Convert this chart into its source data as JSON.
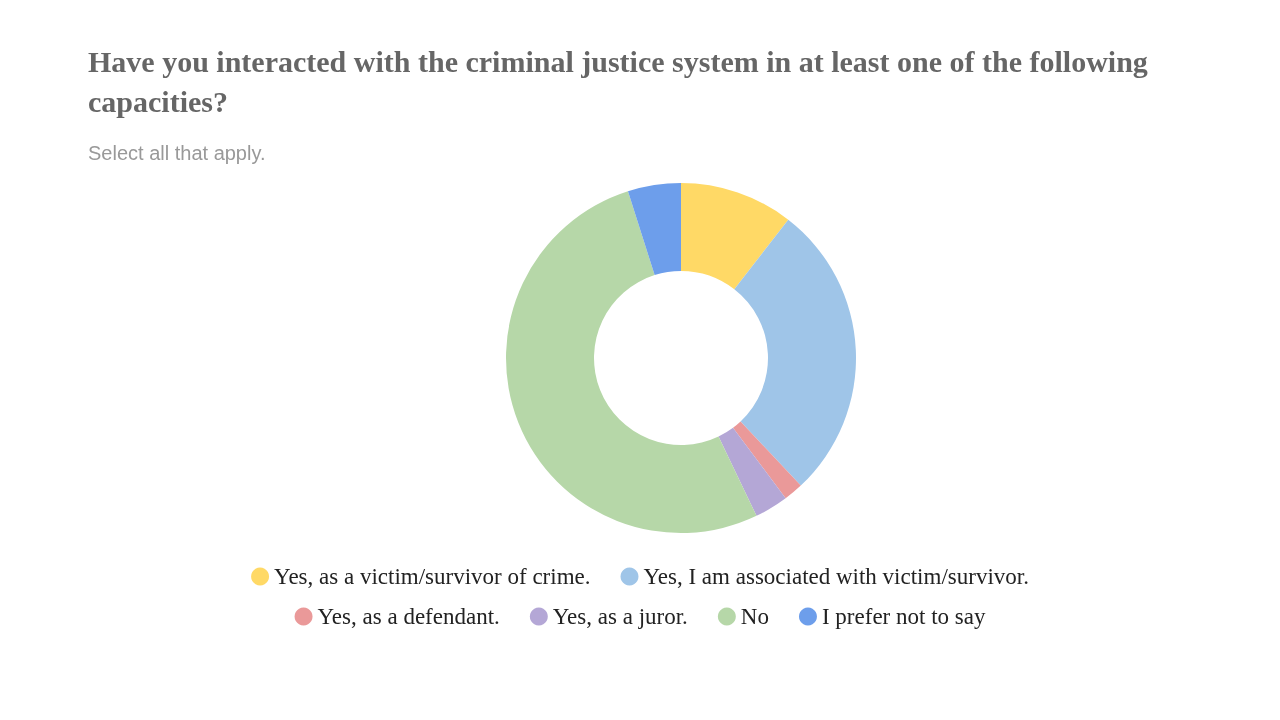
{
  "chart_data": {
    "type": "donut",
    "title": "Have you interacted with the criminal justice system in at least one of the following capacities?",
    "subtitle": "Select all that apply.",
    "categories": [
      "Yes, as a victim/survivor of crime.",
      "Yes, I am associated with victim/survivor.",
      "Yes, as a defendant.",
      "Yes, as a juror.",
      "No",
      "I prefer not to say"
    ],
    "values": [
      10.5,
      27.5,
      1.8,
      3.1,
      52.2,
      4.9
    ],
    "colors": [
      "#ffd966",
      "#9fc5e8",
      "#ea9999",
      "#b4a7d6",
      "#b6d7a8",
      "#6d9eeb"
    ],
    "legend": "bottom"
  }
}
